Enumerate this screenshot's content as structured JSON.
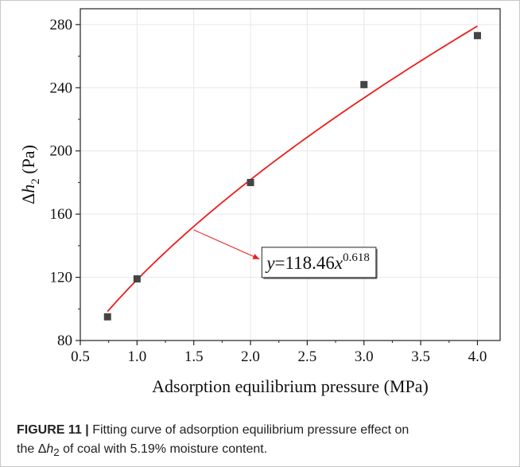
{
  "chart_data": {
    "type": "scatter",
    "xlabel": "Adsorption equilibrium pressure (MPa)",
    "ylabel": {
      "prefix": "Δ",
      "var": "h",
      "sub": "2",
      "unit": " (Pa)"
    },
    "xlim": [
      0.5,
      4.2
    ],
    "ylim": [
      80,
      290
    ],
    "xticks": [
      "0.5",
      "1.0",
      "1.5",
      "2.0",
      "2.5",
      "3.0",
      "3.5",
      "4.0"
    ],
    "yticks": [
      "80",
      "120",
      "160",
      "200",
      "240",
      "280"
    ],
    "grid": true,
    "series": [
      {
        "kind": "points",
        "marker": "square",
        "color": "#444444",
        "x": [
          0.74,
          1.0,
          2.0,
          3.0,
          4.0
        ],
        "y": [
          95,
          119,
          180,
          242,
          273
        ]
      },
      {
        "kind": "fit",
        "color": "#ee1c1c",
        "coefficient": 118.46,
        "exponent": 0.618,
        "x_range": [
          0.74,
          4.0
        ]
      }
    ],
    "annotation": {
      "y_part": "y",
      "eq_part": "=118.46",
      "x_part": "x",
      "exp_part": "0.618",
      "arrow_from": [
        1.5,
        150
      ],
      "arrow_to": [
        2.08,
        131.5
      ],
      "box_anchor": [
        2.1,
        139
      ]
    }
  },
  "caption": {
    "label": "FIGURE 11 |",
    "text_1": "Fitting curve of adsorption equilibrium pressure effect on",
    "text_2a": "the ",
    "text_2_delta": "Δ",
    "text_2_var": "h",
    "text_2_sub": "2",
    "text_2b": " of coal with 5.19% moisture content."
  },
  "colors": {
    "fit_line": "#ee1c1c",
    "points": "#444444",
    "grid": "#e6e6e6",
    "axis": "#222222"
  }
}
